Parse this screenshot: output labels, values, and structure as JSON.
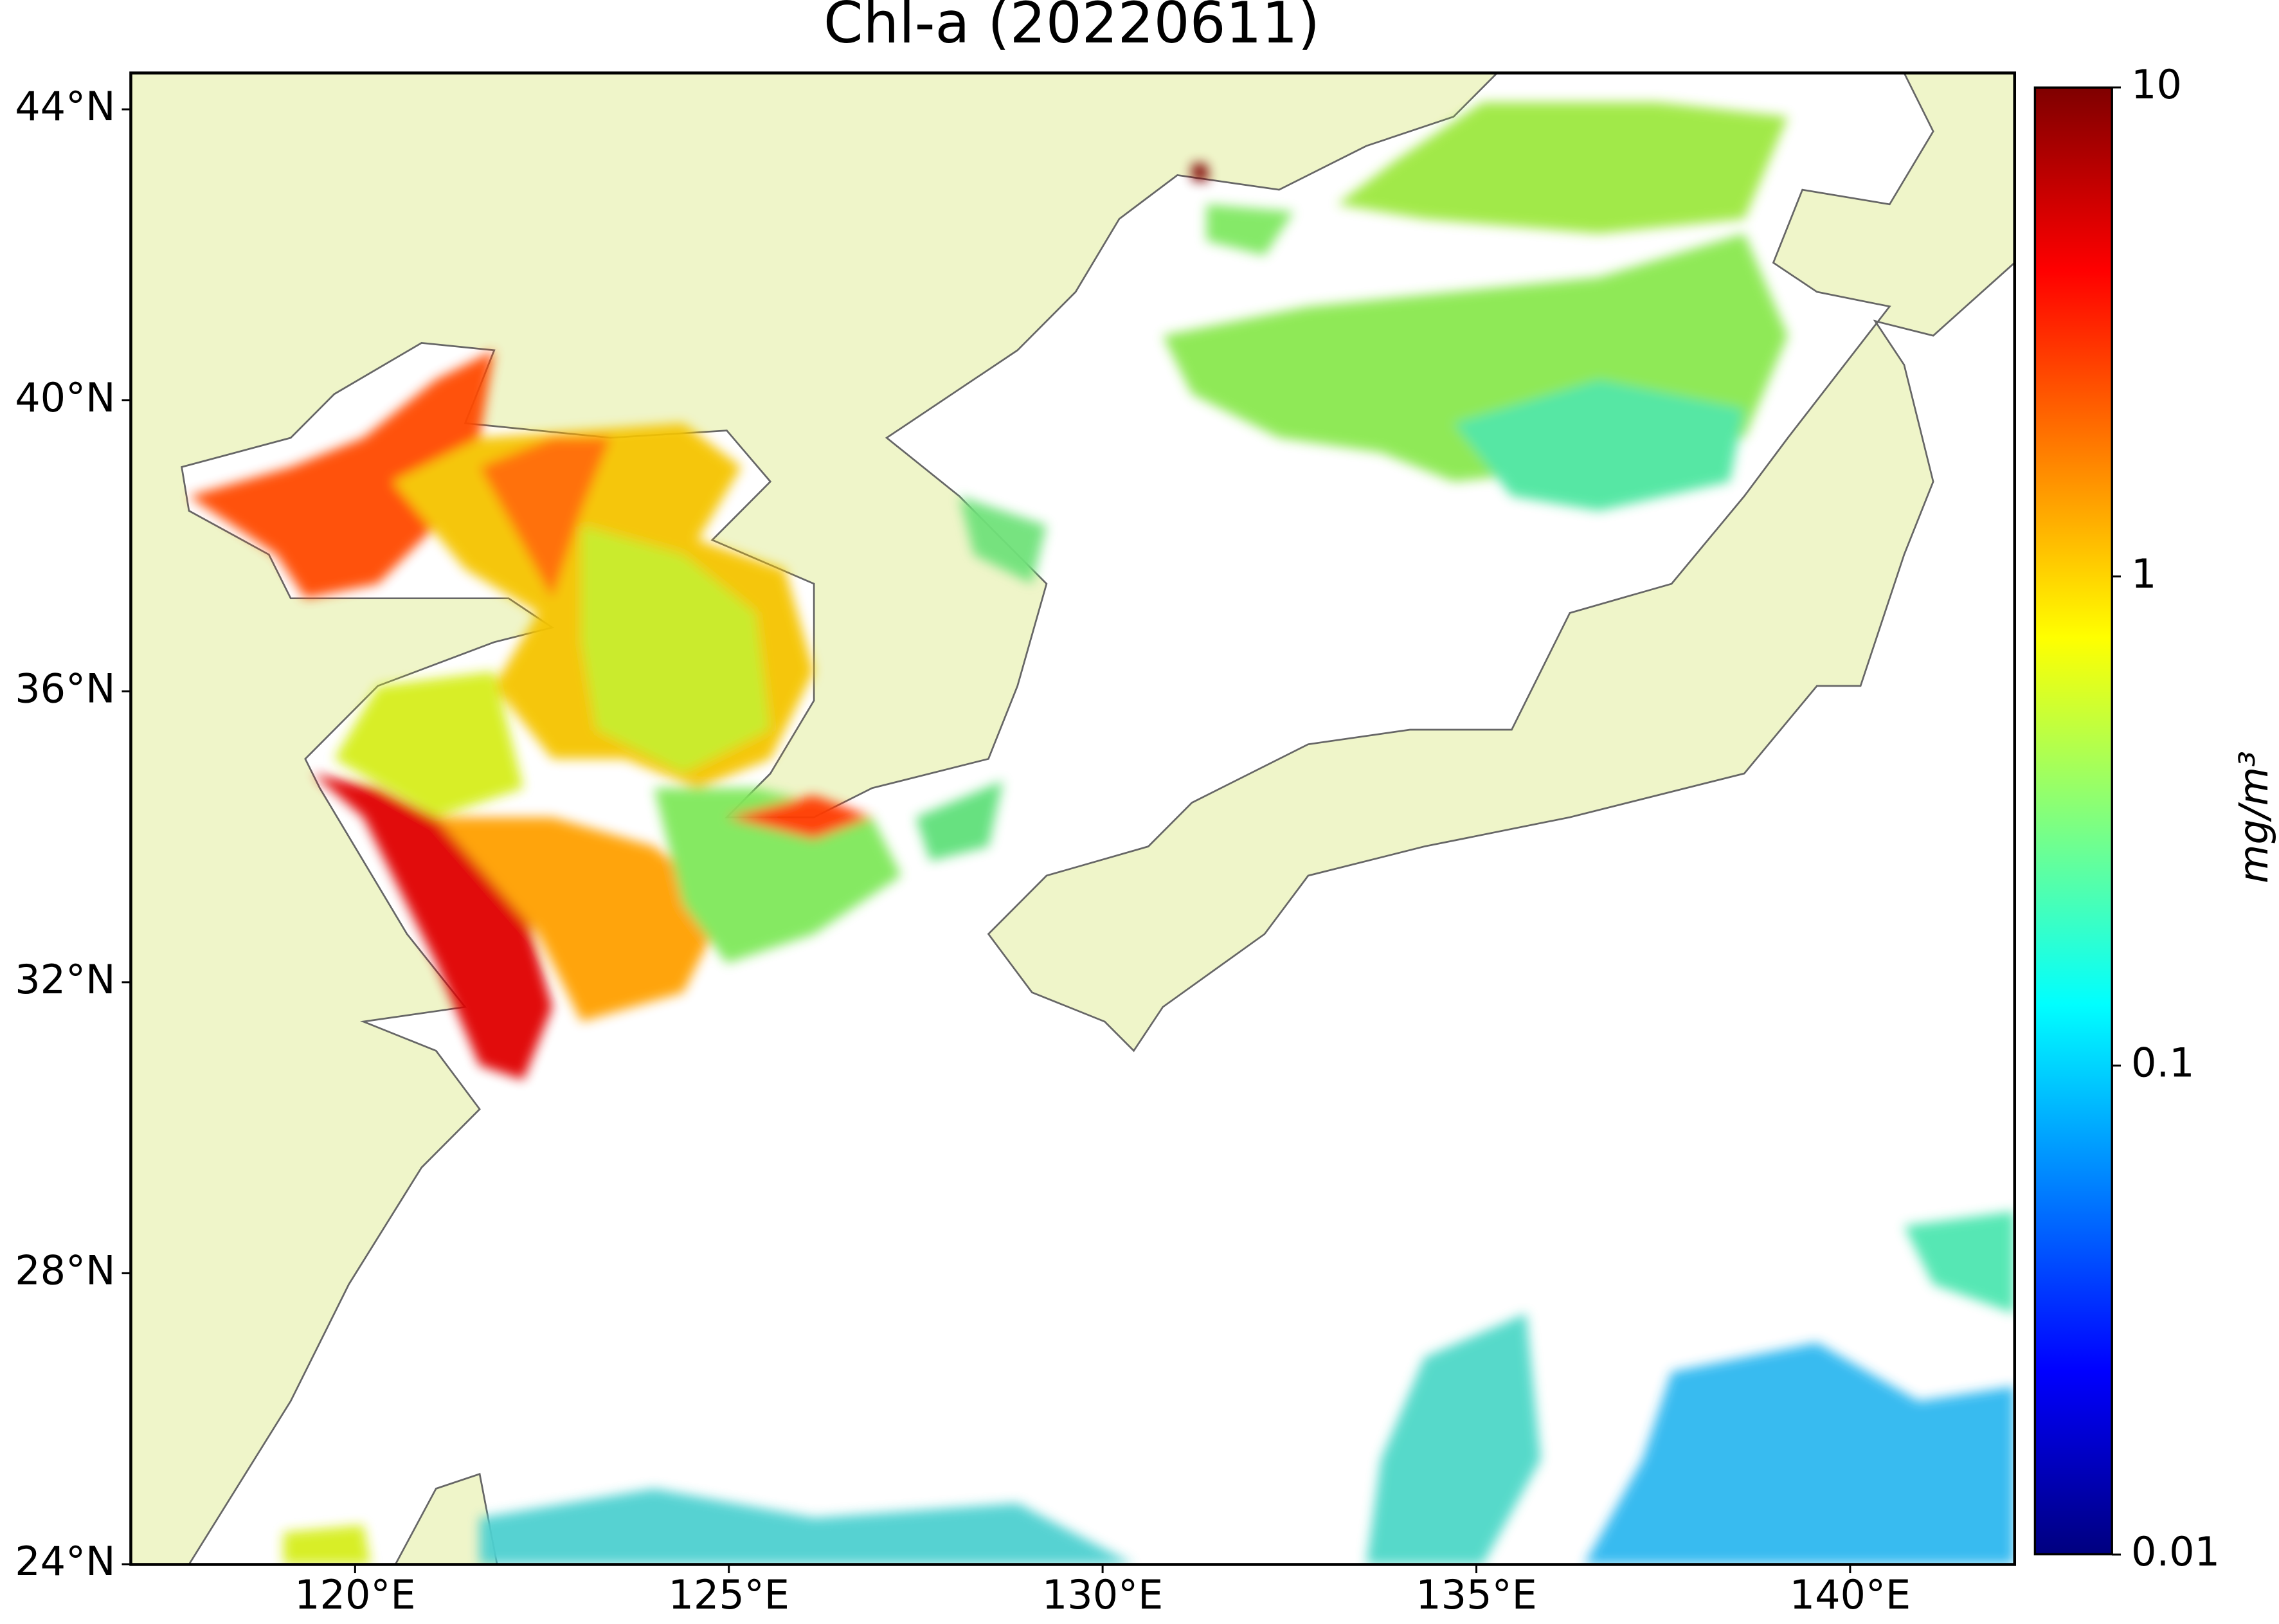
{
  "chart_data": {
    "type": "map",
    "title": "Chl-a (20220611)",
    "xlim": [
      117,
      142.2
    ],
    "ylim": [
      24,
      44.5
    ],
    "xticks": [
      {
        "value": 120,
        "label": "120°E"
      },
      {
        "value": 125,
        "label": "125°E"
      },
      {
        "value": 130,
        "label": "130°E"
      },
      {
        "value": 135,
        "label": "135°E"
      },
      {
        "value": 140,
        "label": "140°E"
      }
    ],
    "yticks": [
      {
        "value": 24,
        "label": "24°N"
      },
      {
        "value": 28,
        "label": "28°N"
      },
      {
        "value": 32,
        "label": "32°N"
      },
      {
        "value": 36,
        "label": "36°N"
      },
      {
        "value": 40,
        "label": "40°N"
      },
      {
        "value": 44,
        "label": "44°N"
      }
    ],
    "colorbar": {
      "label": "mg/m³",
      "lim": [
        0.01,
        10
      ],
      "ticks": [
        0.01,
        0.1,
        1,
        10
      ],
      "log": true
    }
  }
}
